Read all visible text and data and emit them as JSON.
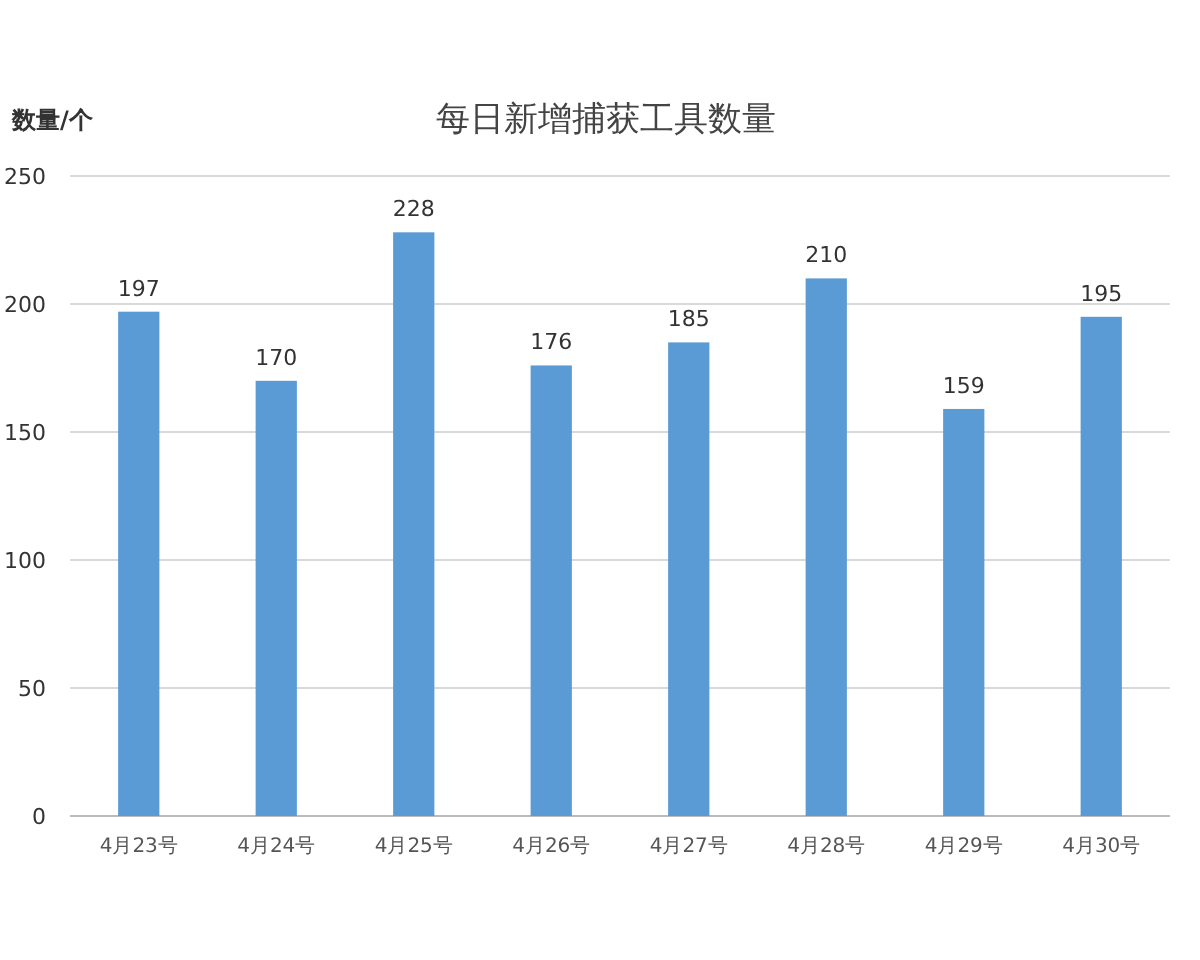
{
  "chart_data": {
    "type": "bar",
    "title": "每日新增捕获工具数量",
    "ylabel": "数量/个",
    "categories": [
      "4月23号",
      "4月24号",
      "4月25号",
      "4月26号",
      "4月27号",
      "4月28号",
      "4月29号",
      "4月30号"
    ],
    "values": [
      197,
      170,
      228,
      176,
      185,
      210,
      159,
      195
    ],
    "color": "#5b9bd5",
    "ylim": [
      0,
      250
    ],
    "yticks": [
      0,
      50,
      100,
      150,
      200,
      250
    ],
    "grid": "y",
    "data_labels": true
  }
}
